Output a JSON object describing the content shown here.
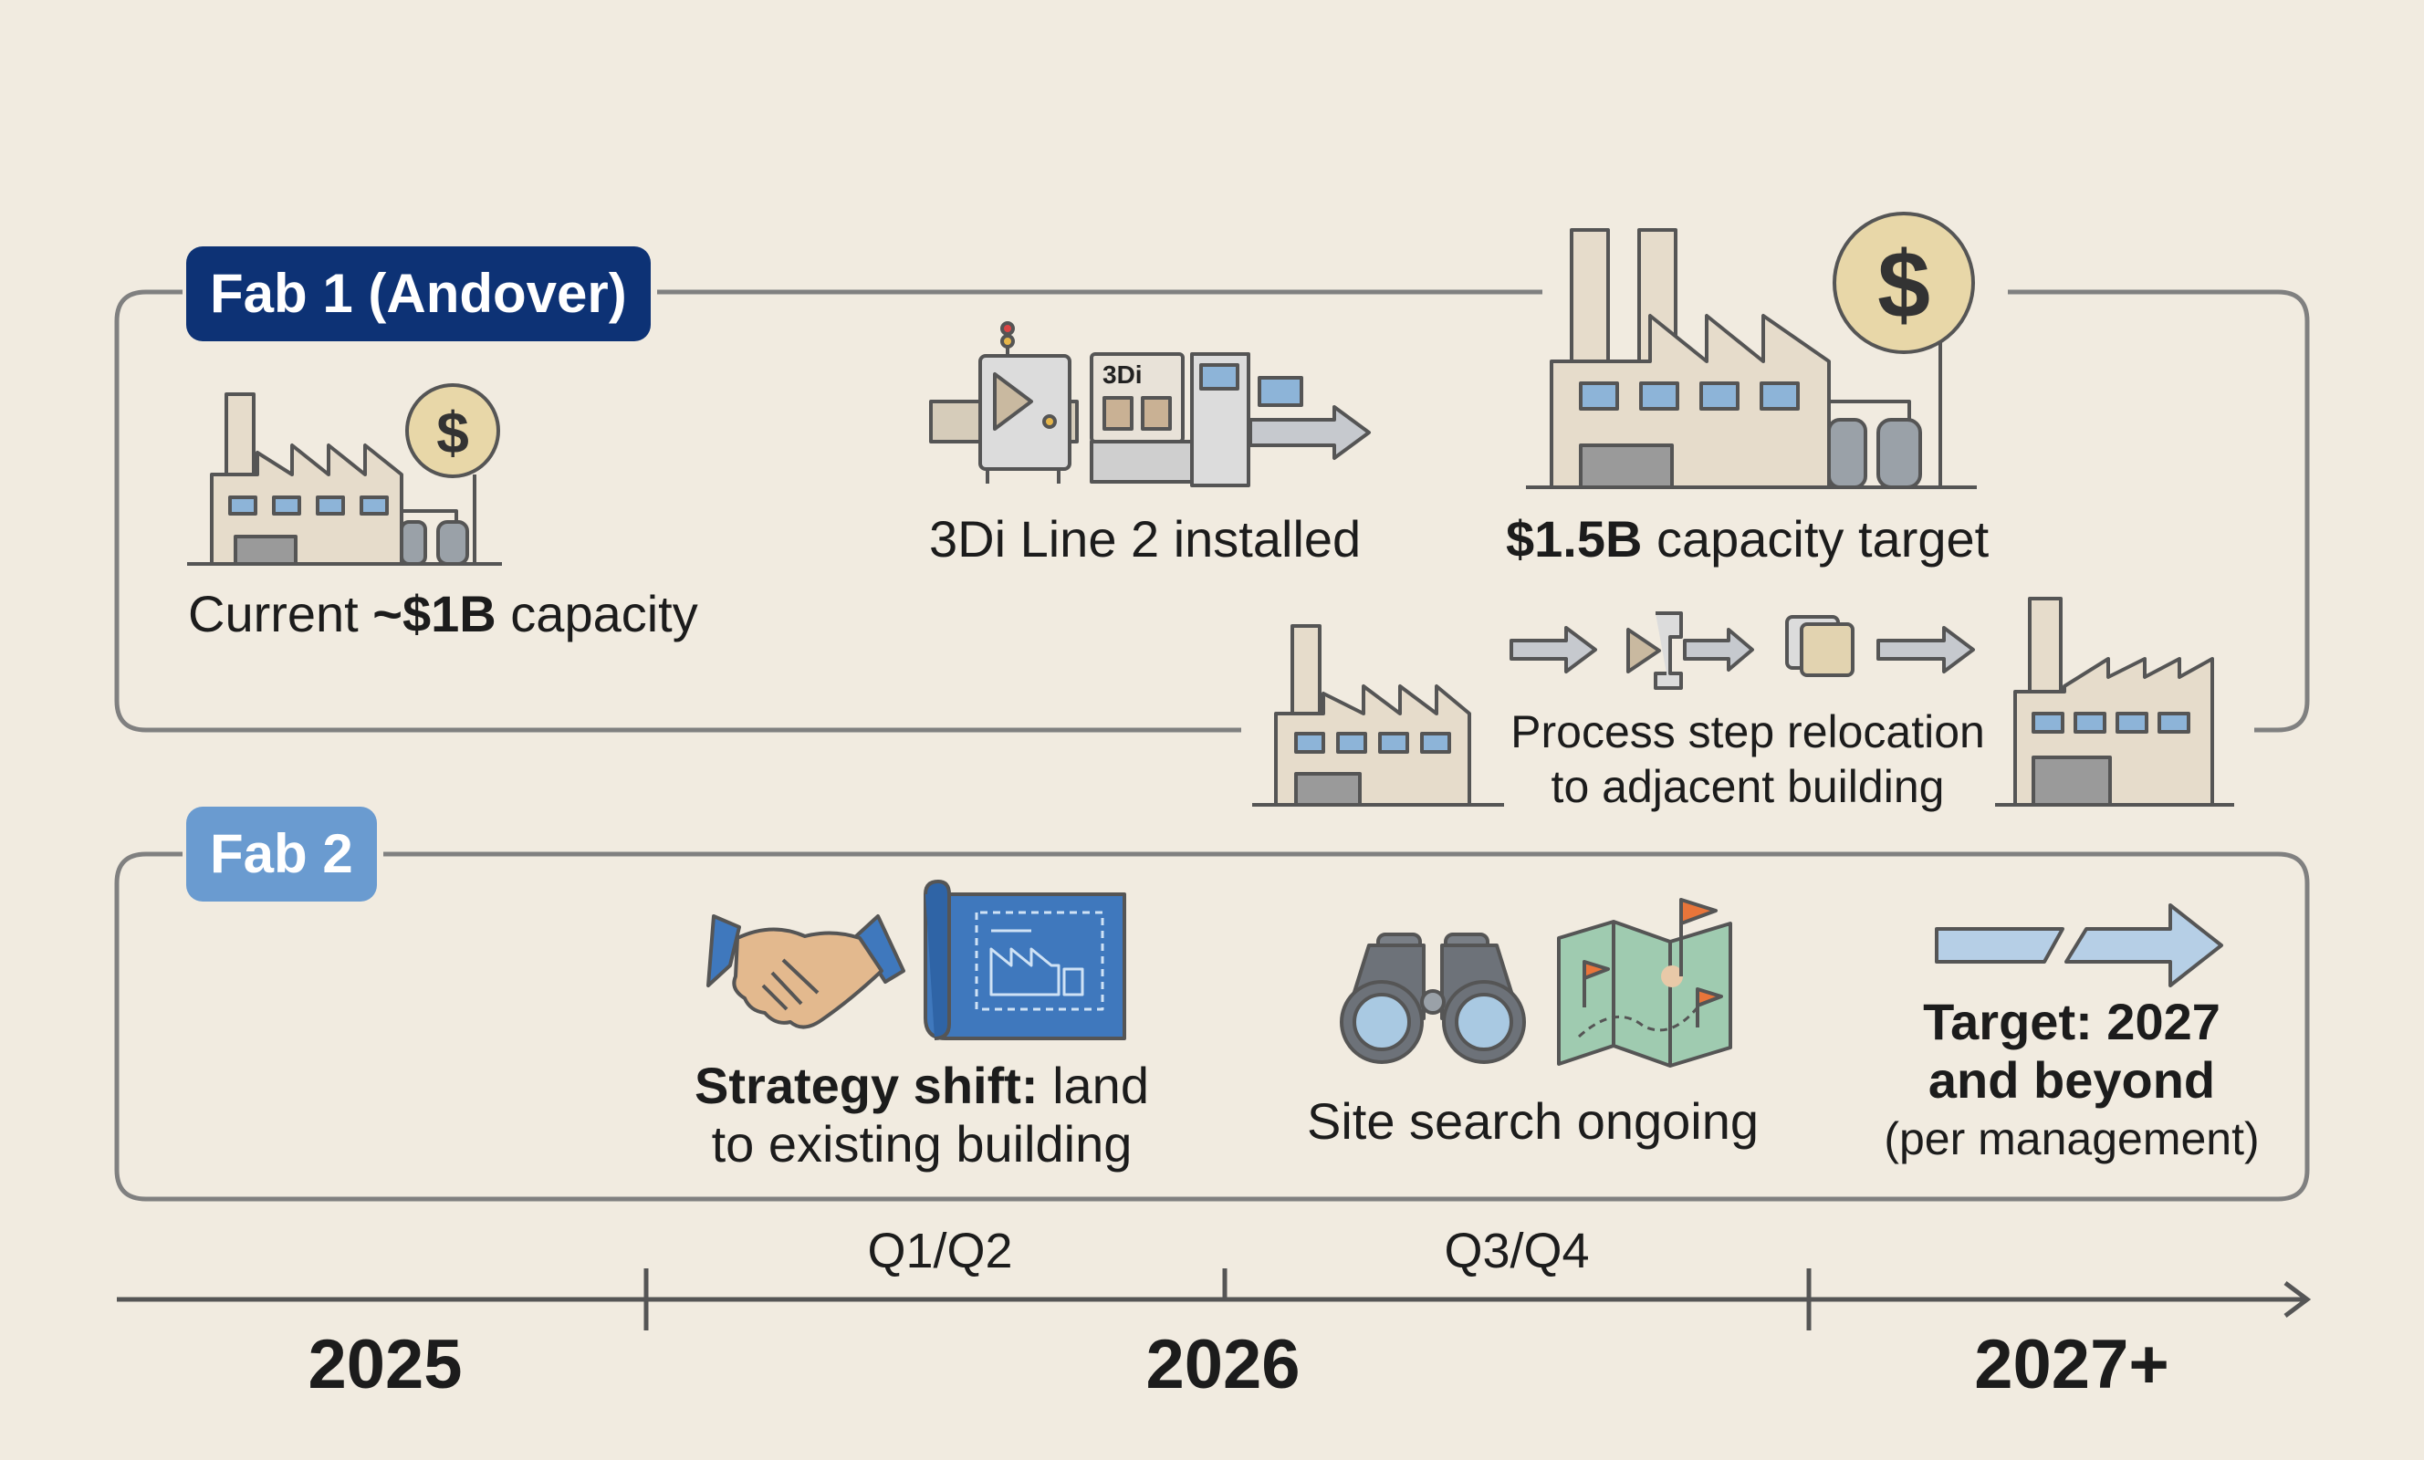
{
  "fab1": {
    "title": "Fab 1 (Andover)",
    "milestones": [
      {
        "pre": "Current ",
        "bold": "~$1B",
        "post": " capacity"
      },
      {
        "pre": "3Di Line 2 installed",
        "bold": "",
        "post": ""
      },
      {
        "pre": "",
        "bold": "$1.5B",
        "post": " capacity target"
      }
    ],
    "relocation": {
      "line1": "Process step relocation",
      "line2": "to adjacent building"
    },
    "machine_label": "3Di"
  },
  "fab2": {
    "title": "Fab 2",
    "strategy": {
      "bold": "Strategy shift:",
      "line1_post": " land",
      "line2": "to existing building"
    },
    "site_search": "Site search ongoing",
    "target": {
      "line1": "Target: 2027",
      "line2": "and beyond",
      "line3": "(per management)"
    }
  },
  "timeline": {
    "quarters": [
      "Q1/Q2",
      "Q3/Q4"
    ],
    "years": [
      "2025",
      "2026",
      "2027+"
    ]
  },
  "colors": {
    "background": "#f1ebe0",
    "fab1_pill": "#0d3275",
    "fab2_pill": "#6a9bd0",
    "outline": "#7e7e7e",
    "building_fill": "#e6dccb",
    "window_blue": "#8db4d8",
    "coin": "#e8d7a8",
    "blueprint": "#3f78bd"
  }
}
